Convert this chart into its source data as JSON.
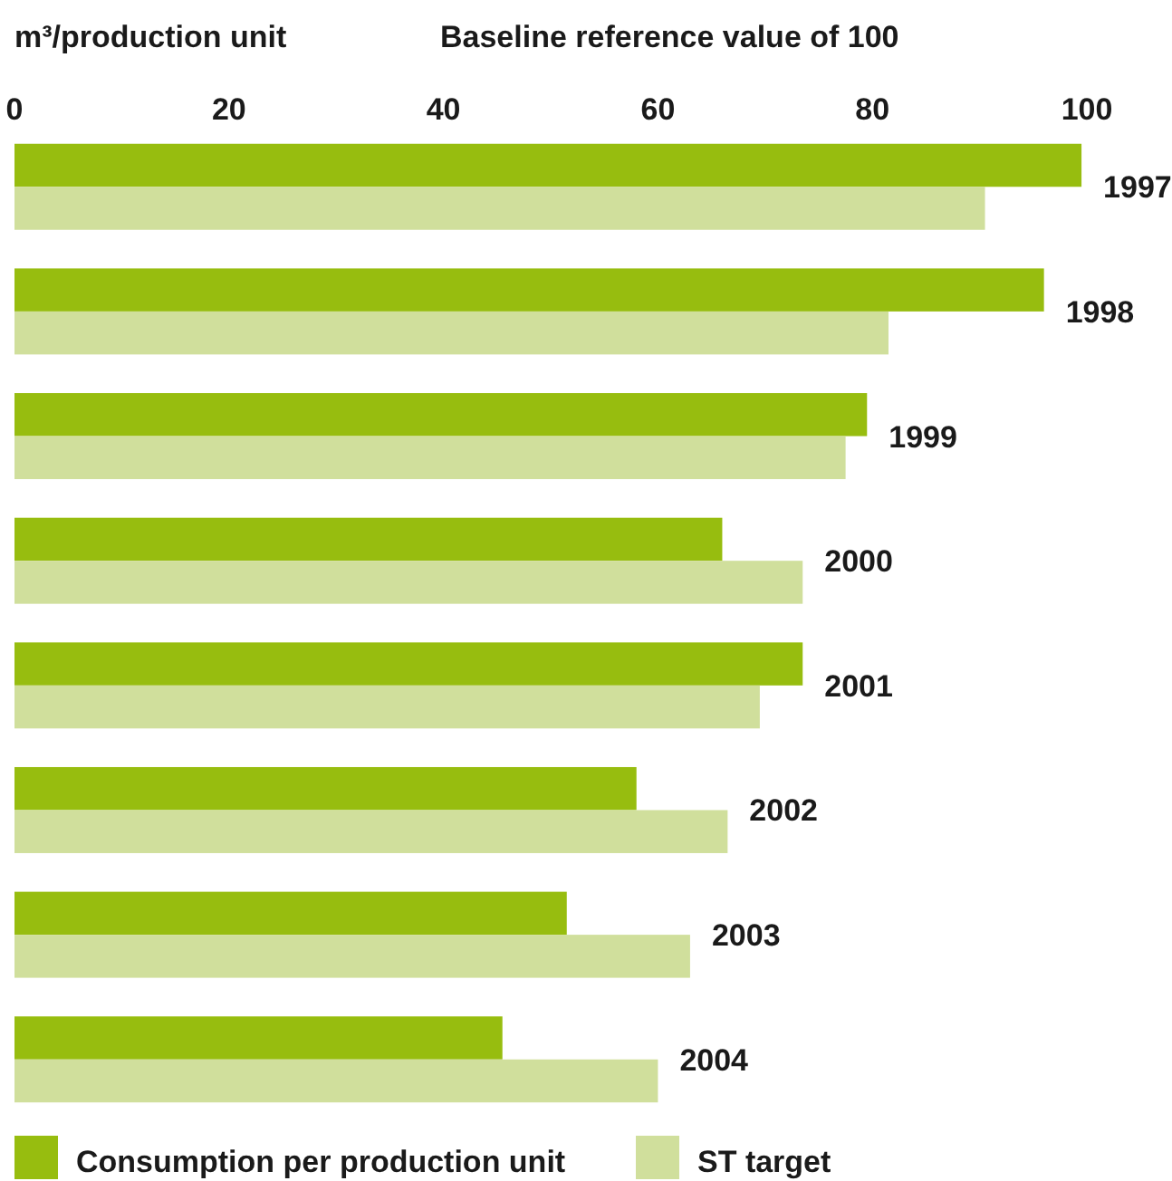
{
  "chart_data": {
    "type": "bar",
    "orientation": "horizontal",
    "ylabel": "m³/production unit",
    "xlabel": "Baseline reference value of 100",
    "categories": [
      "1997",
      "1998",
      "1999",
      "2000",
      "2001",
      "2002",
      "2003",
      "2004"
    ],
    "series": [
      {
        "name": "Consumption per production unit",
        "color": "#97bd0f",
        "values": [
          99.5,
          96,
          79.5,
          66,
          73.5,
          58,
          51.5,
          45.5
        ]
      },
      {
        "name": "ST target",
        "color": "#d0df9c",
        "values": [
          90.5,
          81.5,
          77.5,
          73.5,
          69.5,
          66.5,
          63,
          60
        ]
      }
    ],
    "xlim": [
      0,
      100
    ],
    "xticks": [
      0,
      20,
      40,
      60,
      80,
      100
    ],
    "legend": "bottom"
  }
}
